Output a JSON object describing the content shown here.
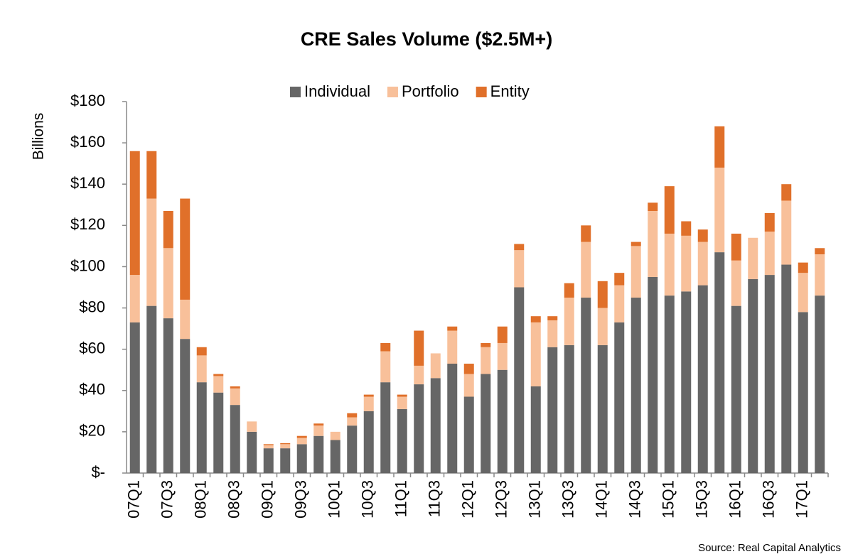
{
  "chart_data": {
    "type": "stacked-bar",
    "title": "CRE Sales Volume ($2.5M+)",
    "y_label": "Billions",
    "source": "Source:  Real Capital Analytics",
    "categories": [
      "07Q1",
      null,
      "07Q3",
      null,
      "08Q1",
      null,
      "08Q3",
      null,
      "09Q1",
      null,
      "09Q3",
      null,
      "10Q1",
      null,
      "10Q3",
      null,
      "11Q1",
      null,
      "11Q3",
      null,
      "12Q1",
      null,
      "12Q3",
      null,
      "13Q1",
      null,
      "13Q3",
      null,
      "14Q1",
      null,
      "14Q3",
      null,
      "15Q1",
      null,
      "15Q3",
      null,
      "16Q1",
      null,
      "16Q3",
      null,
      "17Q1",
      null
    ],
    "series": [
      {
        "name": "Individual",
        "color": "#666666",
        "values": [
          73,
          81,
          75,
          65,
          44,
          39,
          33,
          20,
          12,
          12,
          14,
          18,
          16,
          23,
          30,
          44,
          31,
          43,
          46,
          53,
          37,
          48,
          50,
          90,
          42,
          61,
          62,
          85,
          62,
          73,
          85,
          95,
          86,
          88,
          91,
          107,
          81,
          94,
          96,
          101,
          78,
          86
        ]
      },
      {
        "name": "Portfolio",
        "color": "#f8c09a",
        "values": [
          23,
          52,
          34,
          19,
          13,
          8,
          8,
          5,
          1.5,
          2,
          3,
          5,
          4,
          4,
          7,
          15,
          6,
          9,
          12,
          16,
          11,
          13,
          13,
          18,
          31,
          13,
          23,
          27,
          18,
          18,
          25,
          32,
          30,
          27,
          21,
          41,
          22,
          20,
          21,
          31,
          19,
          20
        ]
      },
      {
        "name": "Entity",
        "color": "#e0702a",
        "values": [
          60,
          23,
          18,
          49,
          4,
          1,
          1,
          0,
          0.5,
          0.5,
          1,
          1,
          0,
          2,
          1,
          4,
          1,
          17,
          0,
          2,
          5,
          2,
          8,
          3,
          3,
          2,
          7,
          8,
          13,
          6,
          2,
          4,
          23,
          7,
          6,
          20,
          13,
          0,
          9,
          8,
          5,
          3
        ]
      }
    ],
    "ylim": [
      0,
      180
    ],
    "yticks": [
      {
        "value": 0,
        "label": "$-"
      },
      {
        "value": 20,
        "label": "$20"
      },
      {
        "value": 40,
        "label": "$40"
      },
      {
        "value": 60,
        "label": "$60"
      },
      {
        "value": 80,
        "label": "$80"
      },
      {
        "value": 100,
        "label": "$100"
      },
      {
        "value": 120,
        "label": "$120"
      },
      {
        "value": 140,
        "label": "$140"
      },
      {
        "value": 160,
        "label": "$160"
      },
      {
        "value": 180,
        "label": "$180"
      }
    ],
    "grid": false,
    "legend": "top"
  }
}
